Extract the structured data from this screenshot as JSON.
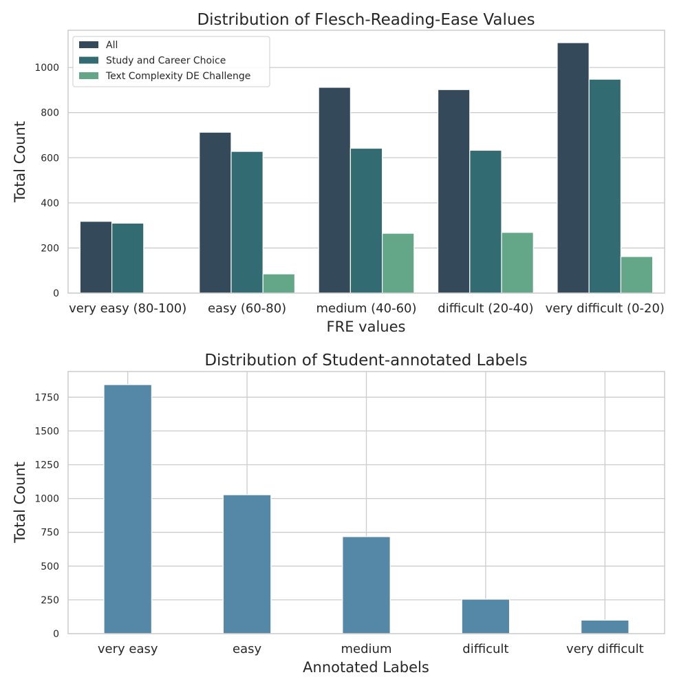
{
  "chart_data": [
    {
      "type": "bar",
      "title": "Distribution of Flesch-Reading-Ease Values",
      "xlabel": "FRE values",
      "ylabel": "Total Count",
      "categories": [
        "very easy (80-100)",
        "easy (60-80)",
        "medium (40-60)",
        "difficult (20-40)",
        "very difficult (0-20)"
      ],
      "series": [
        {
          "name": "All",
          "color": "#34495a",
          "values": [
            318,
            713,
            912,
            902,
            1110
          ]
        },
        {
          "name": "Study and Career Choice",
          "color": "#336b73",
          "values": [
            310,
            628,
            642,
            633,
            948
          ]
        },
        {
          "name": "Text Complexity DE Challenge",
          "color": "#64a688",
          "values": [
            0,
            85,
            265,
            269,
            162
          ]
        }
      ],
      "ylim": [
        0,
        1165
      ],
      "yticks": [
        0,
        200,
        400,
        600,
        800,
        1000
      ],
      "grid": true,
      "legend": "top-left"
    },
    {
      "type": "bar",
      "title": "Distribution of Student-annotated Labels",
      "xlabel": "Annotated Labels",
      "ylabel": "Total Count",
      "categories": [
        "very easy",
        "easy",
        "medium",
        "difficult",
        "very difficult"
      ],
      "series": [
        {
          "color": "#5587a6",
          "values": [
            1843,
            1028,
            718,
            255,
            100
          ]
        }
      ],
      "ylim": [
        0,
        1940
      ],
      "yticks": [
        0,
        250,
        500,
        750,
        1000,
        1250,
        1500,
        1750
      ],
      "grid": true
    }
  ]
}
